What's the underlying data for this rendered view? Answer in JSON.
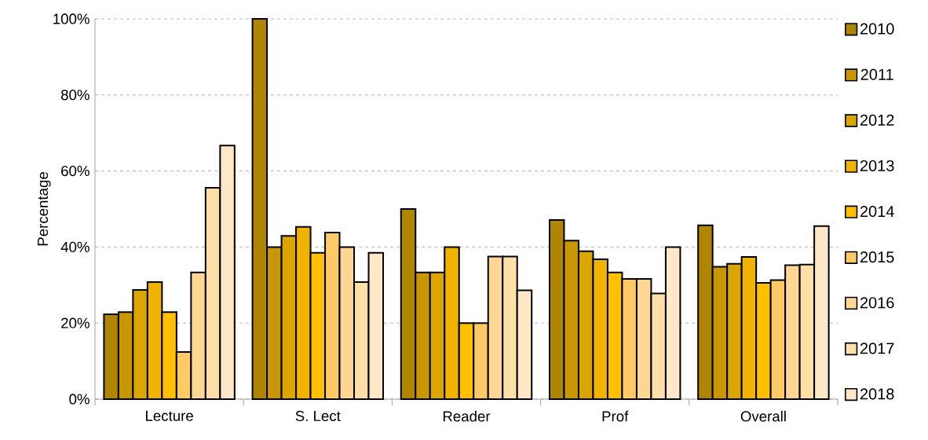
{
  "chart_data": {
    "type": "bar",
    "ylabel": "Percentage",
    "categories": [
      "Lecture",
      "S. Lect",
      "Reader",
      "Prof",
      "Overall"
    ],
    "series": [
      {
        "name": "2010",
        "color": "#b08500",
        "values": [
          22.3,
          100,
          50,
          47.1,
          45.7
        ]
      },
      {
        "name": "2011",
        "color": "#c99700",
        "values": [
          22.9,
          40,
          33.3,
          41.7,
          34.8
        ]
      },
      {
        "name": "2012",
        "color": "#dca600",
        "values": [
          28.7,
          42.9,
          33.3,
          38.9,
          35.6
        ]
      },
      {
        "name": "2013",
        "color": "#efb300",
        "values": [
          30.8,
          45.3,
          40,
          36.8,
          37.4
        ]
      },
      {
        "name": "2014",
        "color": "#ffc000",
        "values": [
          22.9,
          38.5,
          20,
          33.3,
          30.6
        ]
      },
      {
        "name": "2015",
        "color": "#ffc966",
        "values": [
          12.4,
          43.8,
          20,
          31.6,
          31.3
        ]
      },
      {
        "name": "2016",
        "color": "#ffd694",
        "values": [
          33.3,
          40,
          37.5,
          31.6,
          35.2
        ]
      },
      {
        "name": "2017",
        "color": "#ffdfa8",
        "values": [
          55.6,
          30.8,
          37.5,
          27.8,
          35.4
        ]
      },
      {
        "name": "2018",
        "color": "#ffe8c8",
        "values": [
          66.7,
          38.5,
          28.6,
          40,
          45.5
        ]
      }
    ],
    "ylim": [
      0,
      100
    ],
    "yticks": [
      {
        "value": 0,
        "label": "0%"
      },
      {
        "value": 20,
        "label": "20%"
      },
      {
        "value": 40,
        "label": "40%"
      },
      {
        "value": 60,
        "label": "60%"
      },
      {
        "value": 80,
        "label": "80%"
      },
      {
        "value": 100,
        "label": "100%"
      }
    ],
    "grid": "y",
    "legend": "right"
  }
}
